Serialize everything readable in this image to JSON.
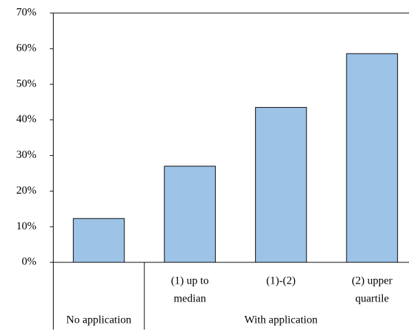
{
  "chart_data": {
    "type": "bar",
    "categories": [
      null,
      [
        "(1) up to",
        "median"
      ],
      [
        "(1)-(2)"
      ],
      [
        "(2) upper",
        "quartile"
      ]
    ],
    "groups": [
      {
        "label": "No application",
        "count": 1
      },
      {
        "label": "With application",
        "count": 3
      }
    ],
    "values": [
      12.3,
      27.0,
      43.5,
      58.6
    ],
    "color": "#9dc3e6",
    "ylim": [
      0,
      70
    ],
    "yticks": [
      {
        "value": 0,
        "label": "0%"
      },
      {
        "value": 10,
        "label": "10%"
      },
      {
        "value": 20,
        "label": "20%"
      },
      {
        "value": 30,
        "label": "30%"
      },
      {
        "value": 40,
        "label": "40%"
      },
      {
        "value": 50,
        "label": "50%"
      },
      {
        "value": 60,
        "label": "60%"
      },
      {
        "value": 70,
        "label": "70%"
      }
    ],
    "grid": false
  }
}
